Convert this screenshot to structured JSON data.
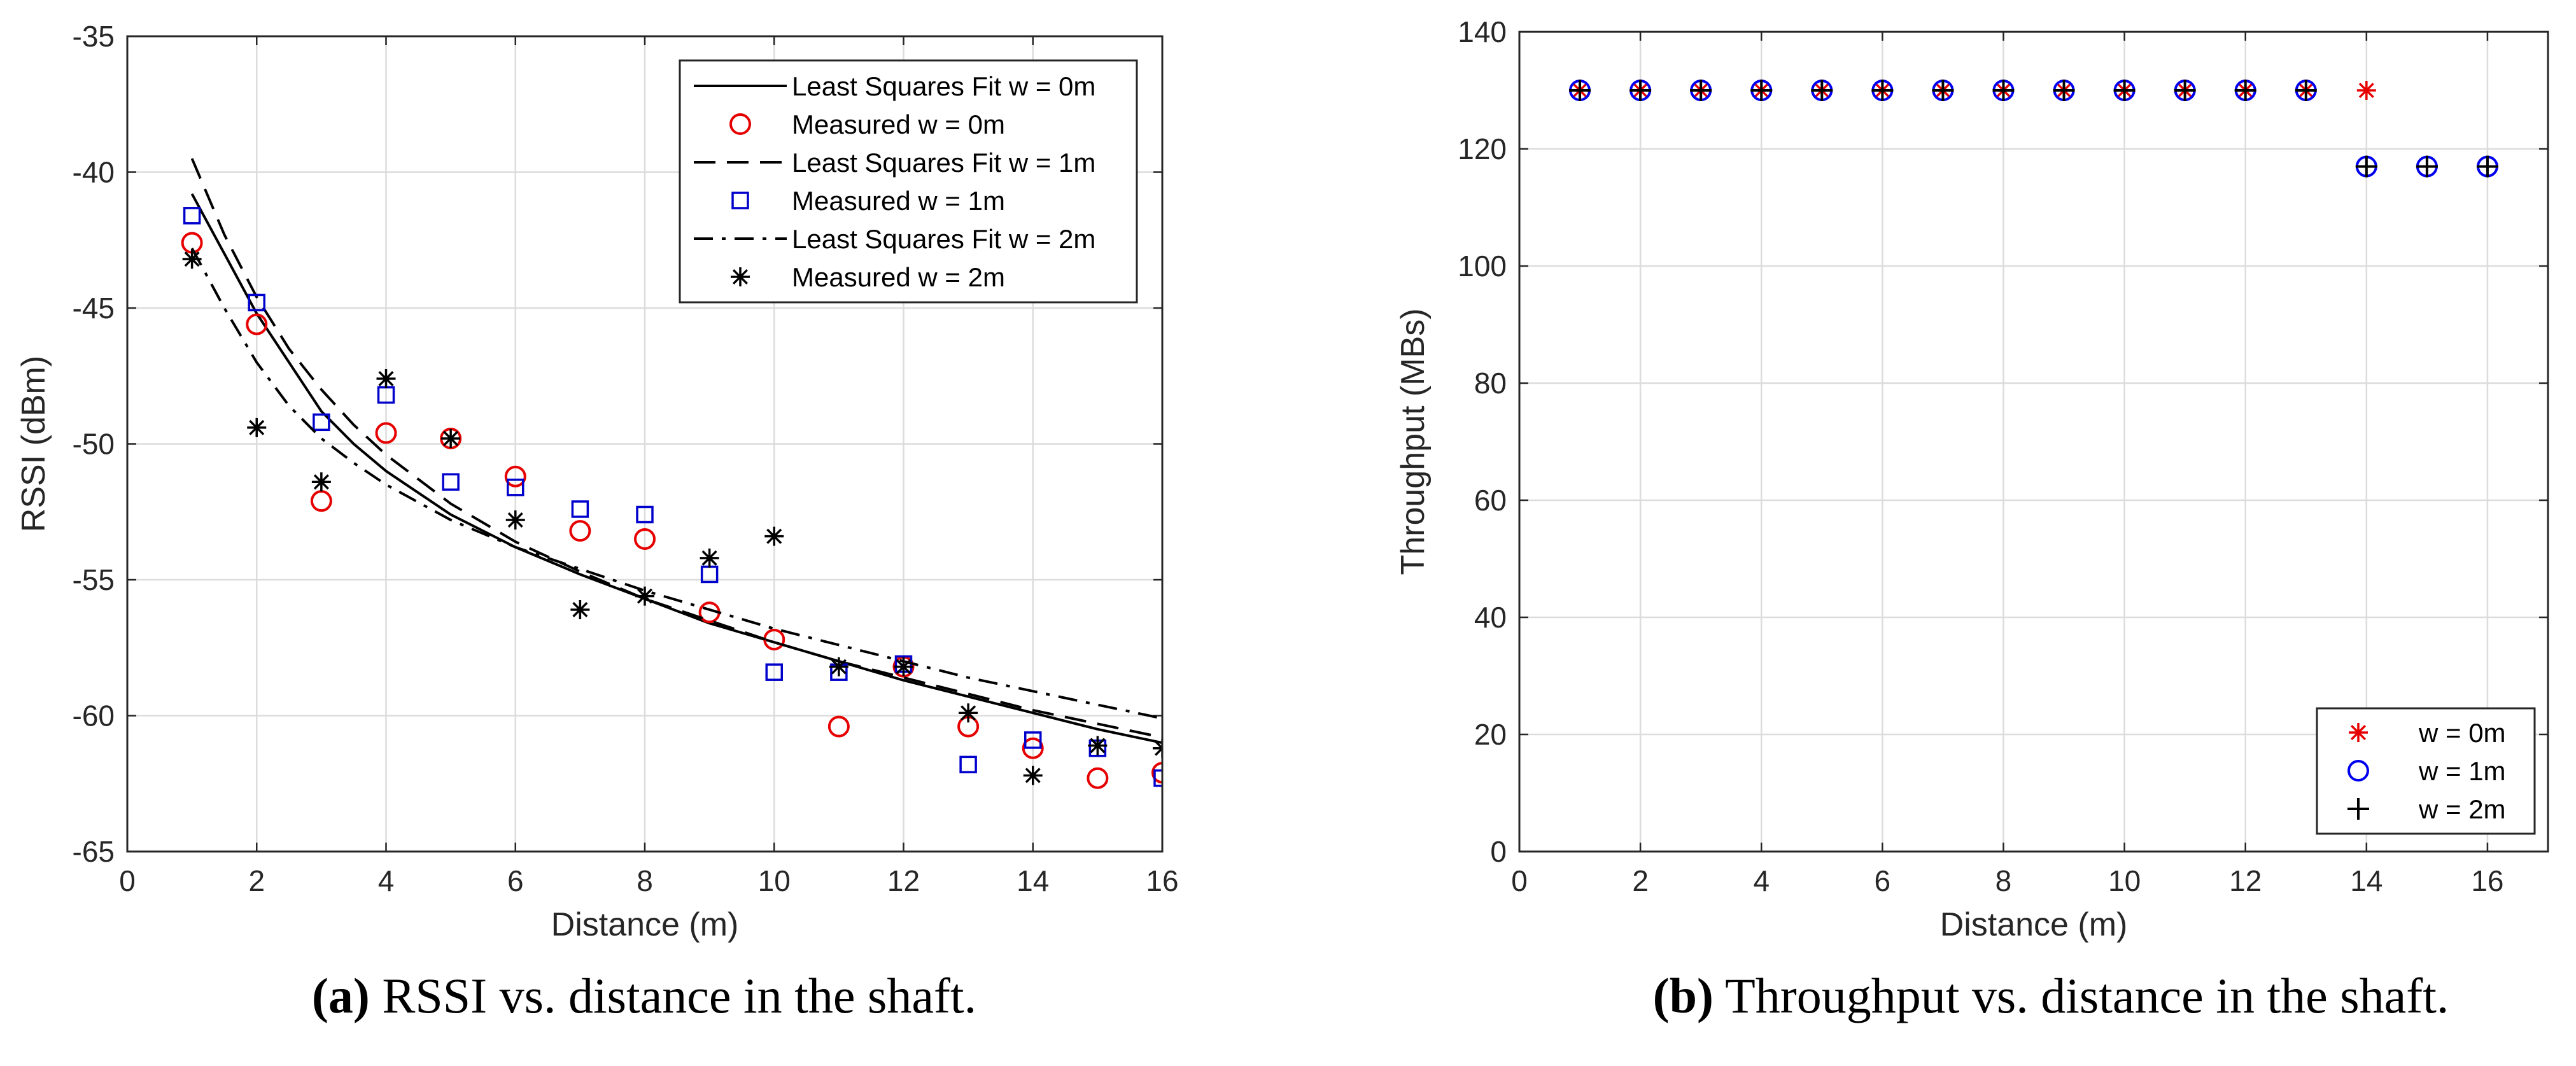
{
  "chart_data": [
    {
      "type": "scatter",
      "caption_letter": "(a)",
      "caption_text": " RSSI vs. distance in the shaft.",
      "xlabel": "Distance  (m)",
      "ylabel": "RSSI (dBm)",
      "xlim": [
        0,
        16
      ],
      "ylim": [
        -65,
        -35
      ],
      "xticks": [
        0,
        2,
        4,
        6,
        8,
        10,
        12,
        14,
        16
      ],
      "yticks": [
        -65,
        -60,
        -55,
        -50,
        -45,
        -40,
        -35
      ],
      "grid": true,
      "legend_position": "top-right",
      "series": [
        {
          "name": "Least Squares Fit  w = 0m",
          "kind": "line",
          "dash": "solid",
          "color": "#000000",
          "x": [
            1,
            1.5,
            2,
            2.5,
            3,
            3.5,
            4,
            5,
            6,
            7,
            8,
            9,
            10,
            11,
            12,
            13,
            14,
            15,
            16
          ],
          "y": [
            -40.8,
            -43.0,
            -45.2,
            -47.0,
            -48.8,
            -50.0,
            -51.0,
            -52.6,
            -53.8,
            -54.8,
            -55.7,
            -56.6,
            -57.3,
            -58.0,
            -58.7,
            -59.3,
            -59.9,
            -60.5,
            -61.0
          ]
        },
        {
          "name": "Measured w = 0m",
          "kind": "marker",
          "marker": "circle",
          "color": "#e60000",
          "x": [
            1,
            2,
            3,
            4,
            5,
            6,
            7,
            8,
            9,
            10,
            11,
            12,
            13,
            14,
            15,
            16
          ],
          "y": [
            -42.6,
            -45.6,
            -52.1,
            -49.6,
            -49.8,
            -51.2,
            -53.2,
            -53.5,
            -56.2,
            -57.2,
            -60.4,
            -58.2,
            -60.4,
            -61.2,
            -62.3,
            -62.1
          ]
        },
        {
          "name": "Least Squares Fit  w = 1m",
          "kind": "line",
          "dash": "dashed",
          "color": "#000000",
          "x": [
            1,
            1.5,
            2,
            2.5,
            3,
            3.5,
            4,
            5,
            6,
            7,
            8,
            9,
            10,
            11,
            12,
            13,
            14,
            15,
            16
          ],
          "y": [
            -39.5,
            -42.3,
            -44.6,
            -46.5,
            -48.0,
            -49.3,
            -50.4,
            -52.2,
            -53.6,
            -54.7,
            -55.7,
            -56.5,
            -57.3,
            -58.0,
            -58.6,
            -59.2,
            -59.8,
            -60.3,
            -60.8
          ]
        },
        {
          "name": "Measured w = 1m",
          "kind": "marker",
          "marker": "square",
          "color": "#0000cc",
          "x": [
            1,
            2,
            3,
            4,
            5,
            6,
            7,
            8,
            9,
            10,
            11,
            12,
            13,
            14,
            15,
            16
          ],
          "y": [
            -41.6,
            -44.8,
            -49.2,
            -48.2,
            -51.4,
            -51.6,
            -52.4,
            -52.6,
            -54.8,
            -58.4,
            -58.4,
            -58.1,
            -61.8,
            -60.9,
            -61.2,
            -62.3
          ]
        },
        {
          "name": "Least Squares Fit  w = 2m",
          "kind": "line",
          "dash": "dashdot",
          "color": "#000000",
          "x": [
            1,
            1.5,
            2,
            2.5,
            3,
            3.5,
            4,
            5,
            6,
            7,
            8,
            9,
            10,
            11,
            12,
            13,
            14,
            15,
            16
          ],
          "y": [
            -42.8,
            -45.0,
            -47.0,
            -48.6,
            -49.8,
            -50.7,
            -51.5,
            -52.8,
            -53.8,
            -54.6,
            -55.4,
            -56.1,
            -56.8,
            -57.4,
            -58.0,
            -58.6,
            -59.1,
            -59.6,
            -60.1
          ]
        },
        {
          "name": "Measured w = 2m",
          "kind": "marker",
          "marker": "asterisk",
          "color": "#000000",
          "x": [
            1,
            2,
            3,
            4,
            5,
            6,
            7,
            8,
            9,
            10,
            11,
            12,
            13,
            14,
            15,
            16
          ],
          "y": [
            -43.2,
            -49.4,
            -51.4,
            -47.6,
            -49.8,
            -52.8,
            -56.1,
            -55.6,
            -54.2,
            -53.4,
            -58.2,
            -58.2,
            -59.9,
            -62.2,
            -61.1,
            -61.2
          ]
        }
      ]
    },
    {
      "type": "scatter",
      "caption_letter": "(b)",
      "caption_text": " Throughput vs. distance in the shaft.",
      "xlabel": "Distance (m)",
      "ylabel": "Throughput (MBs)",
      "xlim": [
        0,
        17
      ],
      "ylim": [
        0,
        140
      ],
      "xticks": [
        0,
        2,
        4,
        6,
        8,
        10,
        12,
        14,
        16
      ],
      "yticks": [
        0,
        20,
        40,
        60,
        80,
        100,
        120,
        140
      ],
      "grid": true,
      "legend_position": "bottom-right",
      "series": [
        {
          "name": "w = 0m",
          "kind": "marker",
          "marker": "asterisk",
          "color": "#e60000",
          "x": [
            1,
            2,
            3,
            4,
            5,
            6,
            7,
            8,
            9,
            10,
            11,
            12,
            13,
            14
          ],
          "y": [
            130,
            130,
            130,
            130,
            130,
            130,
            130,
            130,
            130,
            130,
            130,
            130,
            130,
            130
          ]
        },
        {
          "name": "w = 1m",
          "kind": "marker",
          "marker": "circle",
          "color": "#0000ee",
          "x": [
            1,
            2,
            3,
            4,
            5,
            6,
            7,
            8,
            9,
            10,
            11,
            12,
            13,
            14,
            15,
            16
          ],
          "y": [
            130,
            130,
            130,
            130,
            130,
            130,
            130,
            130,
            130,
            130,
            130,
            130,
            130,
            117,
            117,
            117
          ]
        },
        {
          "name": "w = 2m",
          "kind": "marker",
          "marker": "plus",
          "color": "#000000",
          "x": [
            1,
            2,
            3,
            4,
            5,
            6,
            7,
            8,
            9,
            10,
            11,
            12,
            13,
            14,
            15,
            16
          ],
          "y": [
            130,
            130,
            130,
            130,
            130,
            130,
            130,
            130,
            130,
            130,
            130,
            130,
            130,
            117,
            117,
            117
          ]
        }
      ]
    }
  ]
}
